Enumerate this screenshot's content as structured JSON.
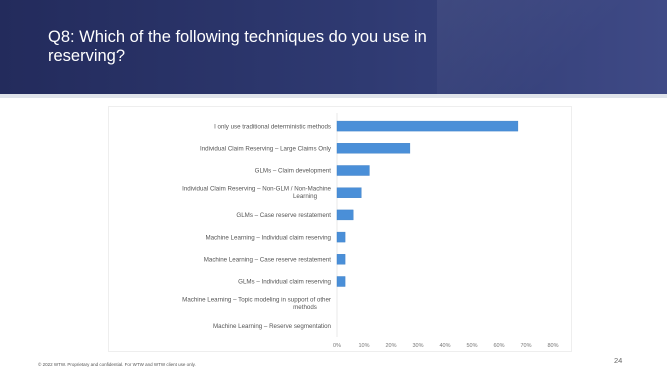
{
  "slide": {
    "title": "Q8: Which of the following techniques do you use in reserving?",
    "footer": "© 2022 WTW. Proprietary and confidential. For WTW and WTW client use only.",
    "page_number": "24"
  },
  "colors": {
    "header_bg": "#2a3366",
    "bar": "#4a8fd8",
    "bar_edge": "#3a7cc4"
  },
  "chart_data": {
    "type": "bar",
    "orientation": "horizontal",
    "categories": [
      "I only use traditional deterministic methods",
      "Individual Claim Reserving – Large Claims Only",
      "GLMs – Claim development",
      "Individual Claim Reserving – Non-GLM / Non-Machine Learning",
      "GLMs – Case reserve restatement",
      "Machine Learning – Individual claim reserving",
      "Machine Learning – Case reserve restatement",
      "GLMs – Individual claim reserving",
      "Machine Learning – Topic modeling in support of other methods",
      "Machine Learning – Reserve segmentation"
    ],
    "values": [
      67,
      27,
      12,
      9,
      6,
      3,
      3,
      3,
      0,
      0
    ],
    "xlim": [
      0,
      80
    ],
    "x_ticks": [
      "0%",
      "10%",
      "20%",
      "30%",
      "40%",
      "50%",
      "60%",
      "70%",
      "80%"
    ],
    "grid": false,
    "legend": "none"
  }
}
